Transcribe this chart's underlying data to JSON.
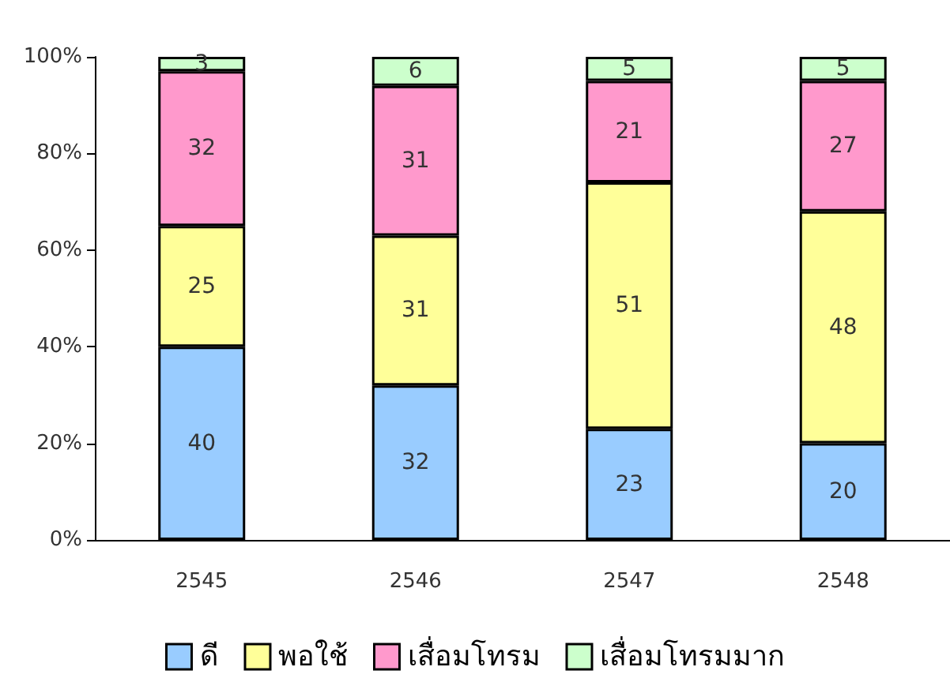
{
  "chart_data": {
    "type": "bar",
    "stacked": true,
    "categories": [
      "2545",
      "2546",
      "2547",
      "2548"
    ],
    "series": [
      {
        "name": "ดี",
        "color": "#99ccff",
        "values": [
          40,
          32,
          23,
          20
        ]
      },
      {
        "name": "พอใช้",
        "color": "#ffff99",
        "values": [
          25,
          31,
          51,
          48
        ]
      },
      {
        "name": "เสื่อมโทรม",
        "color": "#ff99cc",
        "values": [
          32,
          31,
          21,
          27
        ]
      },
      {
        "name": "เสื่อมโทรมมาก",
        "color": "#ccffcc",
        "values": [
          3,
          6,
          5,
          5
        ]
      }
    ],
    "ylim": [
      0,
      100
    ],
    "yticks": [
      {
        "value": 0,
        "label": "0%"
      },
      {
        "value": 20,
        "label": "20%"
      },
      {
        "value": 40,
        "label": "40%"
      },
      {
        "value": 60,
        "label": "60%"
      },
      {
        "value": 80,
        "label": "80%"
      },
      {
        "value": 100,
        "label": "100%"
      }
    ],
    "data_labels": true,
    "grid": false,
    "legend": "bottom"
  }
}
